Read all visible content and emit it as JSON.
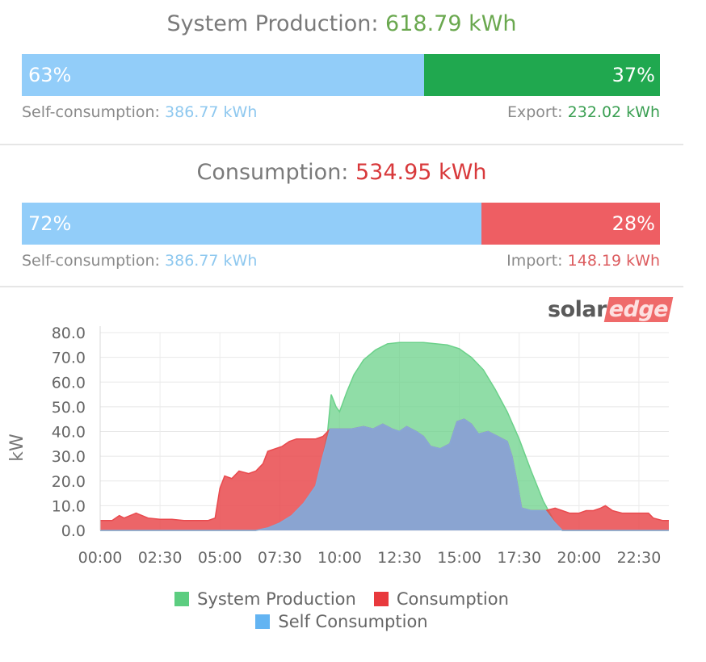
{
  "production": {
    "label": "System Production:",
    "value": "618.79 kWh",
    "bar": {
      "left_percent": 63,
      "left_label": "63%",
      "right_percent": 37,
      "right_label": "37%",
      "left_color": "#92cdf9",
      "right_color": "#20a84f"
    },
    "sub_left_label": "Self-consumption:",
    "sub_left_value": "386.77 kWh",
    "sub_right_label": "Export:",
    "sub_right_value": "232.02 kWh",
    "value_color": "#6aa84f",
    "sub_left_color": "#8ec8ef",
    "sub_right_color": "#3a9f52"
  },
  "consumption": {
    "label": "Consumption:",
    "value": "534.95 kWh",
    "bar": {
      "left_percent": 72,
      "left_label": "72%",
      "right_percent": 28,
      "right_label": "28%",
      "left_color": "#92cdf9",
      "right_color": "#ee5e63"
    },
    "sub_left_label": "Self-consumption:",
    "sub_left_value": "386.77 kWh",
    "sub_right_label": "Import:",
    "sub_right_value": "148.19 kWh",
    "value_color": "#d8393b",
    "sub_left_color": "#8ec8ef",
    "sub_right_color": "#dc5c5f"
  },
  "logo": {
    "part1": "solar",
    "part2": "edge"
  },
  "chart_data": {
    "type": "area",
    "ylabel": "kW",
    "ylim": [
      0,
      80
    ],
    "yticks": [
      "0.0",
      "10.0",
      "20.0",
      "30.0",
      "40.0",
      "50.0",
      "60.0",
      "70.0",
      "80.0"
    ],
    "xlim": [
      0,
      23.75
    ],
    "xticks": [
      {
        "hour": 0,
        "label": "00:00"
      },
      {
        "hour": 2.5,
        "label": "02:30"
      },
      {
        "hour": 5,
        "label": "05:00"
      },
      {
        "hour": 7.5,
        "label": "07:30"
      },
      {
        "hour": 10,
        "label": "10:00"
      },
      {
        "hour": 12.5,
        "label": "12:30"
      },
      {
        "hour": 15,
        "label": "15:00"
      },
      {
        "hour": 17.5,
        "label": "17:30"
      },
      {
        "hour": 20,
        "label": "20:00"
      },
      {
        "hour": 22.5,
        "label": "22:30"
      }
    ],
    "grid": true,
    "legend_position": "bottom",
    "series": [
      {
        "name": "System Production",
        "color": "#6bd18a",
        "points": [
          [
            0,
            0
          ],
          [
            6.5,
            0
          ],
          [
            7,
            1
          ],
          [
            7.5,
            3
          ],
          [
            8,
            6
          ],
          [
            8.5,
            11
          ],
          [
            9,
            18
          ],
          [
            9.3,
            30
          ],
          [
            9.5,
            40
          ],
          [
            9.65,
            55
          ],
          [
            9.85,
            50
          ],
          [
            10,
            48
          ],
          [
            10.3,
            56
          ],
          [
            10.6,
            63
          ],
          [
            11,
            69
          ],
          [
            11.5,
            73
          ],
          [
            12,
            75.5
          ],
          [
            12.5,
            76
          ],
          [
            13,
            76
          ],
          [
            13.5,
            76
          ],
          [
            14,
            75.5
          ],
          [
            14.5,
            75
          ],
          [
            15,
            73.5
          ],
          [
            15.5,
            70
          ],
          [
            16,
            65
          ],
          [
            16.5,
            57
          ],
          [
            17,
            48
          ],
          [
            17.5,
            37
          ],
          [
            18,
            24
          ],
          [
            18.5,
            12
          ],
          [
            19,
            3
          ],
          [
            19.3,
            0
          ],
          [
            23.75,
            0
          ]
        ]
      },
      {
        "name": "Consumption",
        "color": "#e94a4e",
        "points": [
          [
            0,
            4
          ],
          [
            0.5,
            4
          ],
          [
            0.8,
            6
          ],
          [
            1,
            5
          ],
          [
            1.5,
            7
          ],
          [
            2,
            5
          ],
          [
            2.5,
            4.5
          ],
          [
            3,
            4.5
          ],
          [
            3.5,
            4
          ],
          [
            4,
            4
          ],
          [
            4.5,
            4
          ],
          [
            4.8,
            5
          ],
          [
            5,
            17
          ],
          [
            5.2,
            22
          ],
          [
            5.5,
            21
          ],
          [
            5.8,
            24
          ],
          [
            6.2,
            23
          ],
          [
            6.5,
            24
          ],
          [
            6.8,
            27
          ],
          [
            7,
            32
          ],
          [
            7.3,
            33
          ],
          [
            7.6,
            34
          ],
          [
            7.9,
            36
          ],
          [
            8.2,
            37
          ],
          [
            8.6,
            37
          ],
          [
            9,
            37
          ],
          [
            9.3,
            38
          ],
          [
            9.6,
            41
          ],
          [
            10,
            41
          ],
          [
            10.5,
            41
          ],
          [
            11,
            42
          ],
          [
            11.4,
            41
          ],
          [
            11.8,
            43
          ],
          [
            12.2,
            41
          ],
          [
            12.5,
            40
          ],
          [
            12.8,
            42
          ],
          [
            13.2,
            40
          ],
          [
            13.5,
            38
          ],
          [
            13.8,
            34
          ],
          [
            14.2,
            33
          ],
          [
            14.6,
            35
          ],
          [
            14.9,
            44
          ],
          [
            15.2,
            45
          ],
          [
            15.5,
            43
          ],
          [
            15.8,
            39
          ],
          [
            16.2,
            40
          ],
          [
            16.6,
            38
          ],
          [
            17,
            36
          ],
          [
            17.2,
            30
          ],
          [
            17.4,
            20
          ],
          [
            17.6,
            9
          ],
          [
            18,
            8
          ],
          [
            18.3,
            8
          ],
          [
            18.6,
            8
          ],
          [
            19,
            9
          ],
          [
            19.3,
            8
          ],
          [
            19.6,
            7
          ],
          [
            20,
            7
          ],
          [
            20.3,
            8
          ],
          [
            20.6,
            8
          ],
          [
            20.9,
            9
          ],
          [
            21.1,
            10
          ],
          [
            21.4,
            8
          ],
          [
            21.8,
            7
          ],
          [
            22.2,
            7
          ],
          [
            22.6,
            7
          ],
          [
            22.9,
            7
          ],
          [
            23.1,
            5
          ],
          [
            23.5,
            4
          ],
          [
            23.75,
            4
          ]
        ]
      },
      {
        "name": "Self Consumption",
        "color": "#86a8d8",
        "points": [
          [
            0,
            0
          ],
          [
            6.5,
            0
          ],
          [
            7,
            1
          ],
          [
            7.5,
            3
          ],
          [
            8,
            6
          ],
          [
            8.5,
            11
          ],
          [
            9,
            18
          ],
          [
            9.3,
            30
          ],
          [
            9.6,
            41
          ],
          [
            10,
            41
          ],
          [
            10.5,
            41
          ],
          [
            11,
            42
          ],
          [
            11.4,
            41
          ],
          [
            11.8,
            43
          ],
          [
            12.2,
            41
          ],
          [
            12.5,
            40
          ],
          [
            12.8,
            42
          ],
          [
            13.2,
            40
          ],
          [
            13.5,
            38
          ],
          [
            13.8,
            34
          ],
          [
            14.2,
            33
          ],
          [
            14.6,
            35
          ],
          [
            14.9,
            44
          ],
          [
            15.2,
            45
          ],
          [
            15.5,
            43
          ],
          [
            15.8,
            39
          ],
          [
            16.2,
            40
          ],
          [
            16.6,
            38
          ],
          [
            17,
            36
          ],
          [
            17.2,
            30
          ],
          [
            17.4,
            20
          ],
          [
            17.6,
            9
          ],
          [
            18,
            8
          ],
          [
            18.3,
            8
          ],
          [
            18.6,
            8
          ],
          [
            19,
            3
          ],
          [
            19.3,
            0
          ],
          [
            23.75,
            0
          ]
        ]
      }
    ]
  }
}
